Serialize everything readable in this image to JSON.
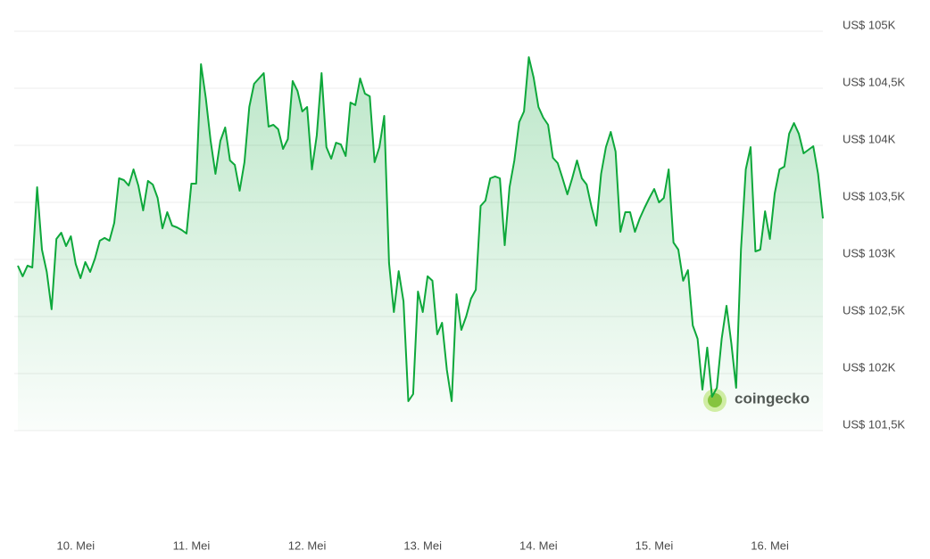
{
  "chart_data": {
    "type": "line",
    "watermark": "coingecko",
    "color": "#0ea83b",
    "grid": true,
    "series": [
      {
        "values": [
          102945,
          102852,
          102945,
          102930,
          103633,
          103086,
          102891,
          102563,
          103180,
          103234,
          103117,
          103203,
          102961,
          102836,
          102977,
          102891,
          103008,
          103164,
          103188,
          103164,
          103320,
          103711,
          103695,
          103648,
          103789,
          103648,
          103430,
          103688,
          103656,
          103539,
          103273,
          103414,
          103297,
          103281,
          103258,
          103227,
          103664,
          103664,
          104711,
          104414,
          104039,
          103750,
          104039,
          104156,
          103867,
          103828,
          103602,
          103852,
          104336,
          104539,
          104586,
          104633,
          104164,
          104180,
          104141,
          103969,
          104055,
          104563,
          104477,
          104297,
          104336,
          103789,
          104086,
          104633,
          103984,
          103883,
          104023,
          104008,
          103906,
          104375,
          104352,
          104586,
          104453,
          104430,
          103852,
          103984,
          104258,
          102969,
          102539,
          102898,
          102633,
          101758,
          101820,
          102719,
          102539,
          102852,
          102813,
          102344,
          102445,
          102031,
          101758,
          102695,
          102383,
          102500,
          102656,
          102734,
          103469,
          103516,
          103711,
          103727,
          103711,
          103125,
          103633,
          103867,
          104203,
          104297,
          104773,
          104594,
          104336,
          104242,
          104180,
          103891,
          103844,
          103711,
          103570,
          103711,
          103867,
          103711,
          103656,
          103461,
          103297,
          103750,
          103984,
          104117,
          103945,
          103242,
          103414,
          103414,
          103242,
          103359,
          103453,
          103539,
          103617,
          103500,
          103539,
          103789,
          103148,
          103086,
          102813,
          102906,
          102422,
          102305,
          101859,
          102227,
          101797,
          101875,
          102305,
          102594,
          102266,
          101875,
          103086,
          103789,
          103984,
          103070,
          103086,
          103422,
          103180,
          103578,
          103789,
          103813,
          104102,
          104195,
          104102,
          103930,
          103961,
          103992,
          103750,
          103359
        ]
      }
    ],
    "xlim": [
      0,
      167
    ],
    "xticks": [
      {
        "value": 12,
        "label": "10. Mei"
      },
      {
        "value": 36,
        "label": "11. Mei"
      },
      {
        "value": 60,
        "label": "12. Mei"
      },
      {
        "value": 84,
        "label": "13. Mei"
      },
      {
        "value": 108,
        "label": "14. Mei"
      },
      {
        "value": 132,
        "label": "15. Mei"
      },
      {
        "value": 156,
        "label": "16. Mei"
      }
    ],
    "ylim": [
      101500,
      105000
    ],
    "yticks": [
      {
        "value": 101500,
        "label": "US$ 101,5K"
      },
      {
        "value": 102000,
        "label": "US$ 102K"
      },
      {
        "value": 102500,
        "label": "US$ 102,5K"
      },
      {
        "value": 103000,
        "label": "US$ 103K"
      },
      {
        "value": 103500,
        "label": "US$ 103,5K"
      },
      {
        "value": 104000,
        "label": "US$ 104K"
      },
      {
        "value": 104500,
        "label": "US$ 104,5K"
      },
      {
        "value": 105000,
        "label": "US$ 105K"
      }
    ]
  }
}
